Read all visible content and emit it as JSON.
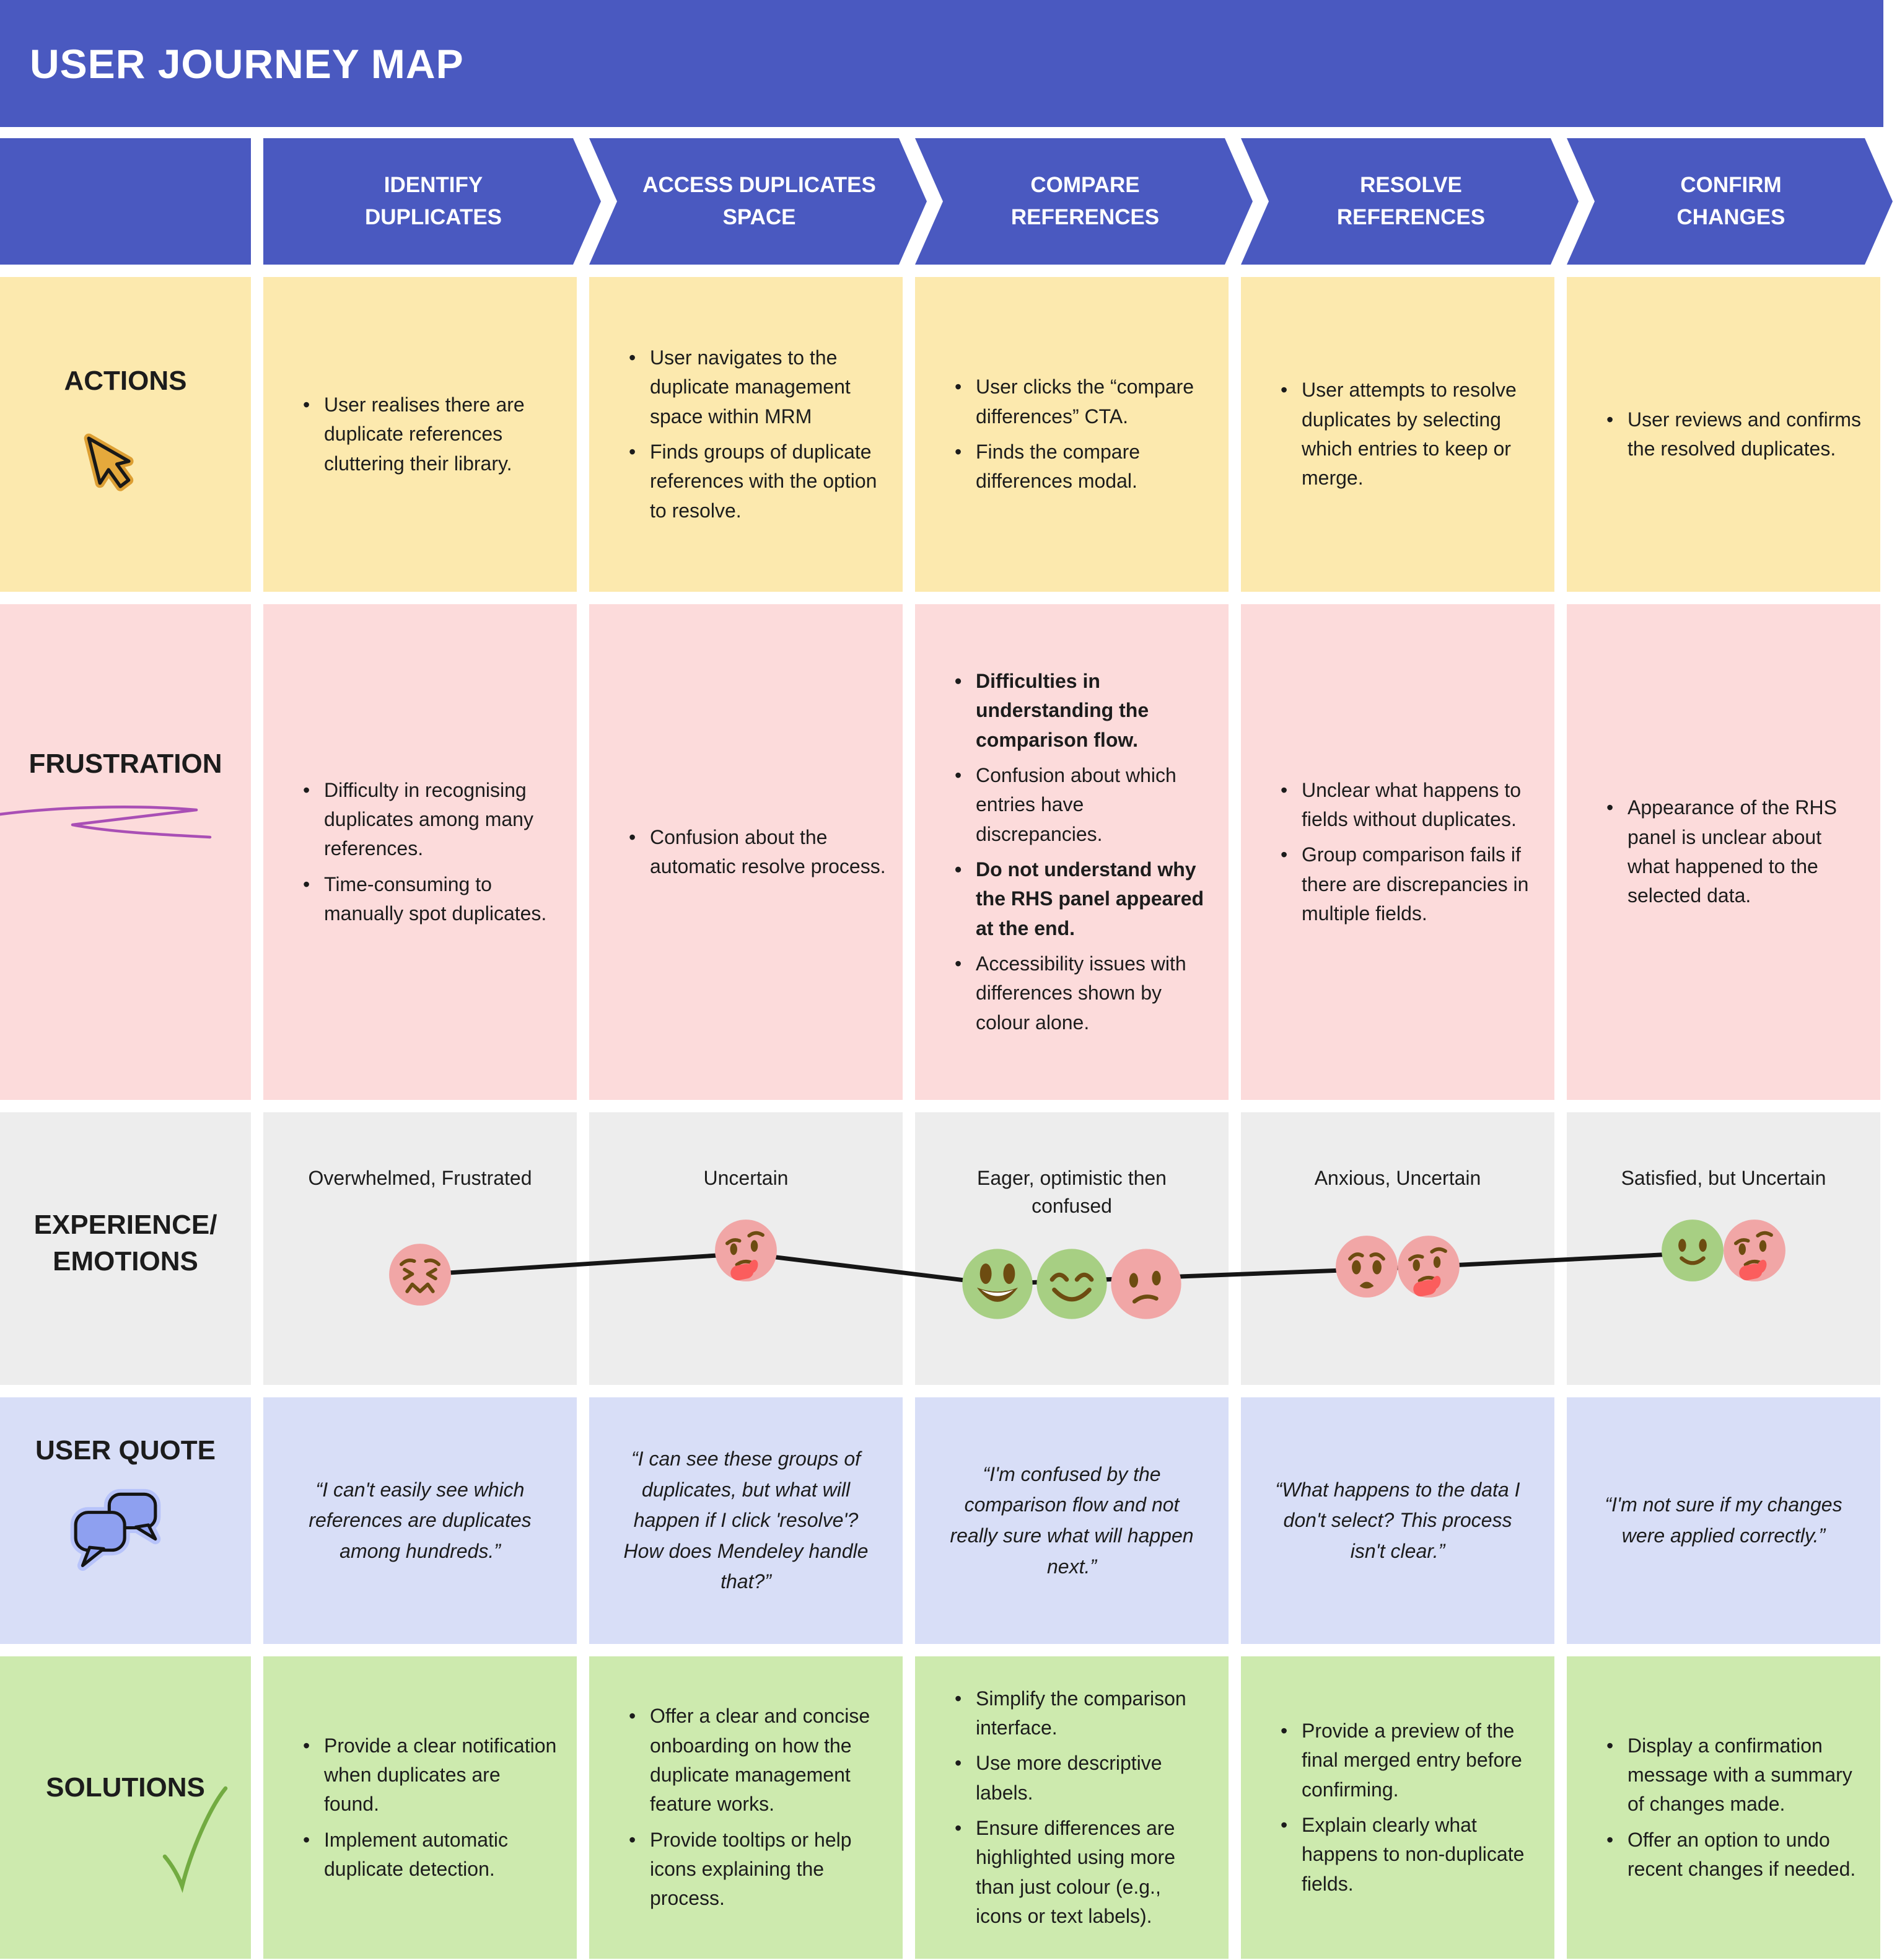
{
  "title": "USER JOURNEY MAP",
  "colors": {
    "banner_blue": "#4a59c0",
    "actions_bg": "#fce9ae",
    "frustration_bg": "#fcdbdb",
    "emotions_bg": "#ededed",
    "quote_bg": "#d8def7",
    "solutions_bg": "#cdeaae",
    "face_pink": "#f1a6a6",
    "face_green": "#a7cf83",
    "emotion_line": "#161616",
    "scribble_purple": "#a94fb5",
    "check_green": "#72ab41",
    "cursor_gold": "#e5a93c",
    "bubble_blue": "#8ea0f0"
  },
  "row_labels": {
    "actions": "ACTIONS",
    "frustration": "FRUSTRATION",
    "emotions": "EXPERIENCE/\nEMOTIONS",
    "quote": "USER QUOTE",
    "solutions": "SOLUTIONS"
  },
  "row_icons": {
    "actions": "cursor-icon",
    "frustration": "scribble-icon",
    "quote": "speech-bubbles-icon",
    "solutions": "checkmark-icon"
  },
  "stages": [
    {
      "header": "IDENTIFY\nDUPLICATES",
      "actions": [
        {
          "t": "User realises there are duplicate references cluttering their library.",
          "b": false
        }
      ],
      "frustrations": [
        {
          "t": "Difficulty in recognising duplicates among many references.",
          "b": false
        },
        {
          "t": "Time-consuming to manually spot duplicates.",
          "b": false
        }
      ],
      "emotion_label": "Overwhelmed, Frustrated",
      "emotion_faces": [
        "confounded"
      ],
      "quote": "“I can't easily see which references are duplicates among hundreds.”",
      "solutions": [
        {
          "t": "Provide a clear notification when duplicates are found.",
          "b": false
        },
        {
          "t": "Implement automatic duplicate detection.",
          "b": false
        }
      ]
    },
    {
      "header": "ACCESS DUPLICATES\nSPACE",
      "actions": [
        {
          "t": "User navigates to the duplicate management space within MRM",
          "b": false
        },
        {
          "t": "Finds groups of duplicate references with the option to resolve.",
          "b": false
        }
      ],
      "frustrations": [
        {
          "t": "Confusion about the automatic resolve process.",
          "b": false
        }
      ],
      "emotion_label": "Uncertain",
      "emotion_faces": [
        "thinking"
      ],
      "quote": "“I can see these groups of duplicates, but what will happen if I click 'resolve'? How does Mendeley handle that?”",
      "solutions": [
        {
          "t": "Offer a clear and concise onboarding on how the duplicate management feature works.",
          "b": false
        },
        {
          "t": "Provide tooltips or help icons explaining the process.",
          "b": false
        }
      ]
    },
    {
      "header": "COMPARE REFERENCES",
      "actions": [
        {
          "t": "User clicks the “compare differences” CTA.",
          "b": false
        },
        {
          "t": "Finds the compare differences modal.",
          "b": false
        }
      ],
      "frustrations": [
        {
          "t": "Difficulties in understanding the comparison flow.",
          "b": true
        },
        {
          "t": "Confusion about which entries have discrepancies.",
          "b": false
        },
        {
          "t": "Do not understand why the RHS panel appeared at the end.",
          "b": true
        },
        {
          "t": "Accessibility issues with differences shown by colour alone.",
          "b": false
        }
      ],
      "emotion_label": "Eager, optimistic then confused",
      "emotion_faces": [
        "grinning",
        "smiling-eyes",
        "confused"
      ],
      "quote": "“I'm confused by the comparison flow and not really sure what will happen next.”",
      "solutions": [
        {
          "t": "Simplify the comparison interface.",
          "b": false
        },
        {
          "t": "Use more descriptive labels.",
          "b": false
        },
        {
          "t": "Ensure differences are highlighted using more than just colour (e.g., icons or text labels).",
          "b": false
        }
      ]
    },
    {
      "header": "RESOLVE\nREFERENCES",
      "actions": [
        {
          "t": "User attempts to resolve duplicates by selecting which entries to keep or merge.",
          "b": false
        }
      ],
      "frustrations": [
        {
          "t": "Unclear what happens to fields without duplicates.",
          "b": false
        },
        {
          "t": "Group comparison fails if there are discrepancies in multiple fields.",
          "b": false
        }
      ],
      "emotion_label": "Anxious, Uncertain",
      "emotion_faces": [
        "anguished",
        "thinking"
      ],
      "quote": "“What happens to the data I don't select? This process isn't clear.”",
      "solutions": [
        {
          "t": "Provide a preview of the final merged entry before confirming.",
          "b": false
        },
        {
          "t": "Explain clearly what happens to non-duplicate fields.",
          "b": false
        }
      ]
    },
    {
      "header": "CONFIRM\nCHANGES",
      "actions": [
        {
          "t": "User reviews and confirms the resolved duplicates.",
          "b": false
        }
      ],
      "frustrations": [
        {
          "t": "Appearance of the RHS panel is unclear about what happened to the selected data.",
          "b": false
        }
      ],
      "emotion_label": "Satisfied, but Uncertain",
      "emotion_faces": [
        "slight-smile",
        "thinking"
      ],
      "quote": "“I'm not sure if my changes were applied correctly.”",
      "solutions": [
        {
          "t": "Display a confirmation message with a summary of changes made.",
          "b": false
        },
        {
          "t": "Offer an option to undo recent changes if needed.",
          "b": false
        }
      ]
    }
  ]
}
